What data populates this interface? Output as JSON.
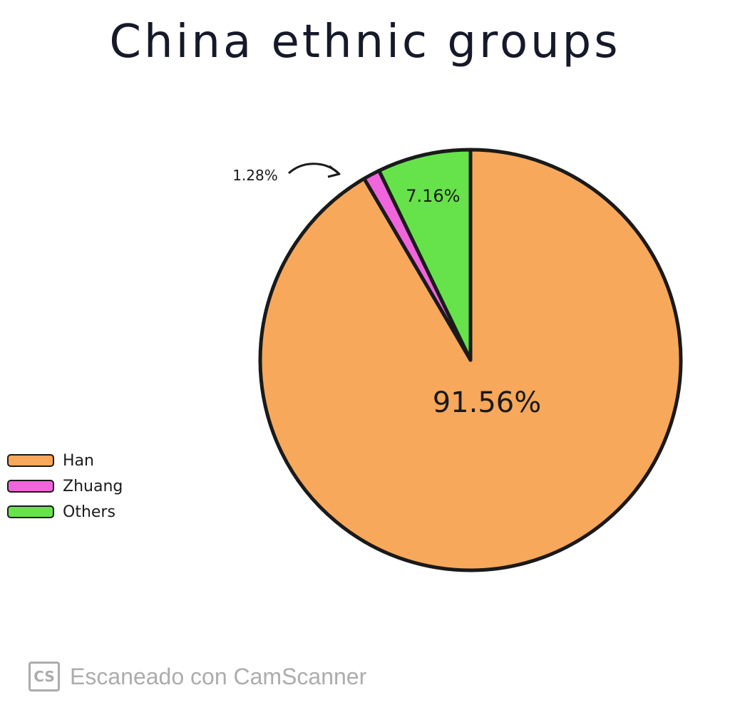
{
  "chart_data": {
    "type": "pie",
    "title": "China ethnic groups",
    "slices": [
      {
        "label": "Han",
        "value": 91.56,
        "display": "91.56%",
        "color": "#f7a85b"
      },
      {
        "label": "Zhuang",
        "value": 1.28,
        "display": "1.28%",
        "color": "#f065dc"
      },
      {
        "label": "Others",
        "value": 7.16,
        "display": "7.16%",
        "color": "#66e34a"
      }
    ],
    "legend_position": "left"
  },
  "colors": {
    "outline": "#1a1a1a"
  },
  "watermark": {
    "logo_text": "CS",
    "text": "Escaneado con CamScanner"
  }
}
